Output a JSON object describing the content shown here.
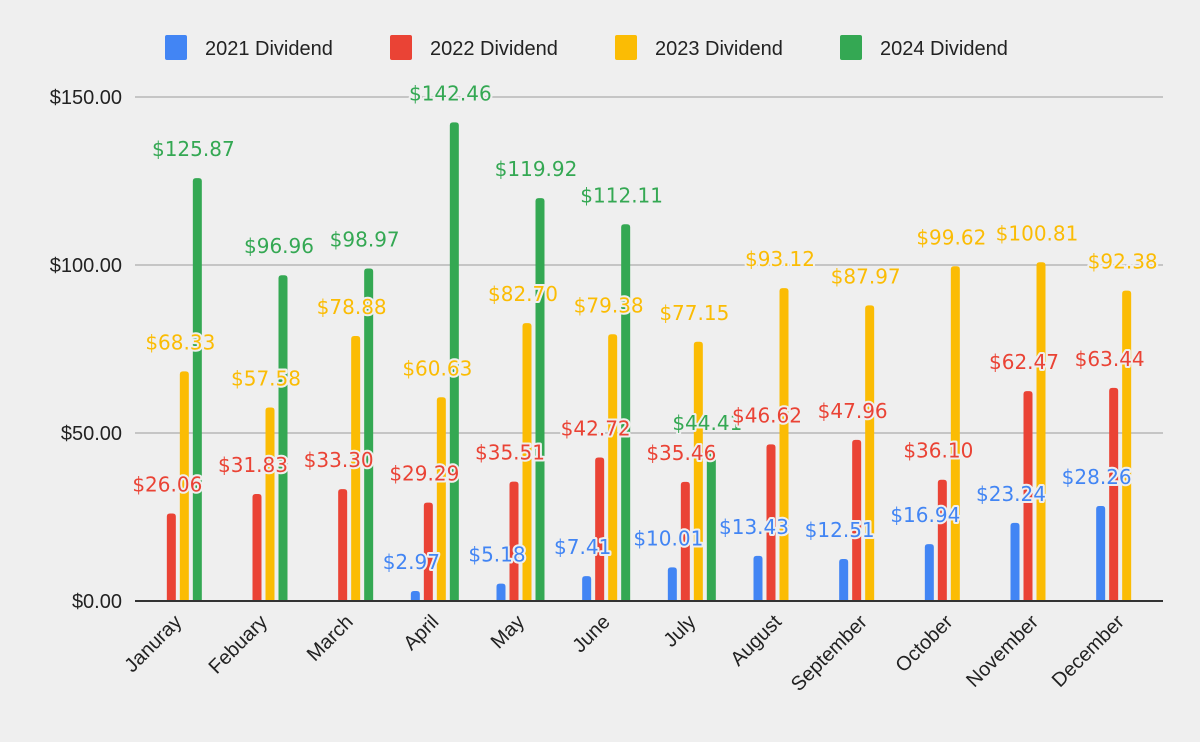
{
  "chart_data": {
    "type": "bar",
    "title": "",
    "xlabel": "",
    "ylabel": "",
    "ylim": [
      0,
      150
    ],
    "yticks": [
      0,
      50,
      100,
      150
    ],
    "ytick_labels": [
      "$0.00",
      "$50.00",
      "$100.00",
      "$150.00"
    ],
    "grid": true,
    "legend_position": "top",
    "categories": [
      "Januray",
      "Febuary",
      "March",
      "April",
      "May",
      "June",
      "July",
      "August",
      "September",
      "October",
      "November",
      "December"
    ],
    "series": [
      {
        "name": "2021 Dividend",
        "color": "#4285f4",
        "values": [
          null,
          null,
          null,
          2.97,
          5.18,
          7.41,
          10.01,
          13.43,
          12.51,
          16.94,
          23.24,
          28.26
        ],
        "labels": [
          null,
          null,
          null,
          "$2.97",
          "$5.18",
          "$7.41",
          "$10.01",
          "$13.43",
          "$12.51",
          "$16.94",
          "$23.24",
          "$28.26"
        ]
      },
      {
        "name": "2022 Dividend",
        "color": "#ea4335",
        "values": [
          26.06,
          31.83,
          33.3,
          29.29,
          35.51,
          42.72,
          35.46,
          46.62,
          47.96,
          36.1,
          62.47,
          63.44
        ],
        "labels": [
          "$26.06",
          "$31.83",
          "$33.30",
          "$29.29",
          "$35.51",
          "$42.72",
          "$35.46",
          "$46.62",
          "$47.96",
          "$36.10",
          "$62.47",
          "$63.44"
        ]
      },
      {
        "name": "2023 Dividend",
        "color": "#fbbc04",
        "values": [
          68.33,
          57.58,
          78.88,
          60.63,
          82.7,
          79.38,
          77.15,
          93.12,
          87.97,
          99.62,
          100.81,
          92.38
        ],
        "labels": [
          "$68.33",
          "$57.58",
          "$78.88",
          "$60.63",
          "$82.70",
          "$79.38",
          "$77.15",
          "$93.12",
          "$87.97",
          "$99.62",
          "$100.81",
          "$92.38"
        ]
      },
      {
        "name": "2024 Dividend",
        "color": "#34a853",
        "values": [
          125.87,
          96.96,
          98.97,
          142.46,
          119.92,
          112.11,
          44.41,
          null,
          null,
          null,
          null,
          null
        ],
        "labels": [
          "$125.87",
          "$96.96",
          "$98.97",
          "$142.46",
          "$119.92",
          "$112.11",
          "$44.41",
          null,
          null,
          null,
          null,
          null
        ]
      }
    ]
  }
}
